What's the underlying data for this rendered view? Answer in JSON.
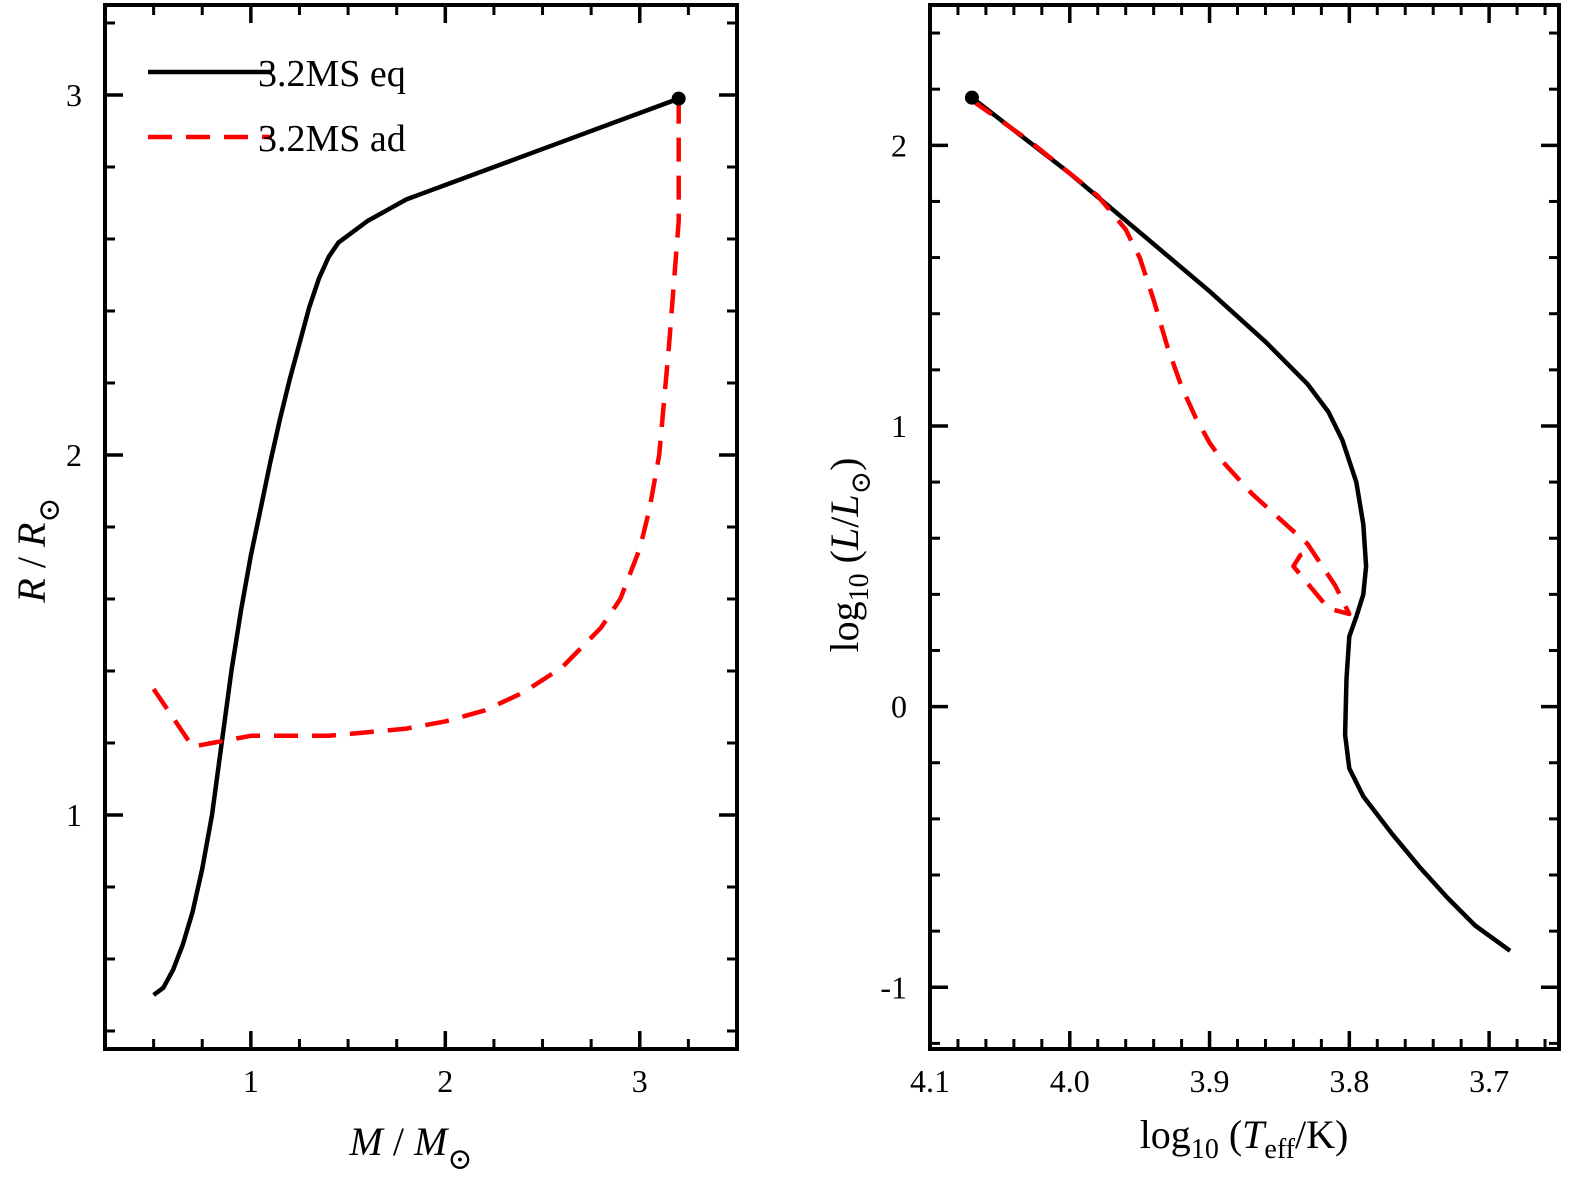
{
  "chart_data": [
    {
      "type": "line",
      "id": "mass-radius",
      "xlabel": {
        "main": "M",
        "sep": " / ",
        "sub_main": "M",
        "subscript": "⊙"
      },
      "ylabel": {
        "main": "R",
        "sep": " / ",
        "sub_main": "R",
        "subscript": "⊙"
      },
      "xlim": [
        0.25,
        3.5
      ],
      "ylim": [
        0.35,
        3.25
      ],
      "xticks": {
        "major": [
          1,
          2,
          3
        ],
        "labels": [
          "1",
          "2",
          "3"
        ],
        "minor_step": 0.25
      },
      "yticks": {
        "major": [
          1,
          2,
          3
        ],
        "labels": [
          "1",
          "2",
          "3"
        ],
        "minor_step": 0.2
      },
      "legend": {
        "position": "top-left",
        "entries": [
          {
            "label": "3.2MS eq",
            "series": "eq"
          },
          {
            "label": "3.2MS ad",
            "series": "ad"
          }
        ]
      },
      "series": [
        {
          "name": "3.2MS eq",
          "key": "eq",
          "color": "#000000",
          "style": "solid",
          "x": [
            0.5,
            0.55,
            0.6,
            0.65,
            0.7,
            0.75,
            0.8,
            0.85,
            0.9,
            0.95,
            1.0,
            1.05,
            1.1,
            1.15,
            1.2,
            1.25,
            1.3,
            1.35,
            1.4,
            1.45,
            1.5,
            1.6,
            1.7,
            1.8,
            1.9,
            2.0,
            2.2,
            2.4,
            2.6,
            2.8,
            3.0,
            3.2
          ],
          "y": [
            0.5,
            0.52,
            0.57,
            0.64,
            0.73,
            0.85,
            1.0,
            1.2,
            1.4,
            1.57,
            1.72,
            1.85,
            1.98,
            2.1,
            2.21,
            2.31,
            2.41,
            2.49,
            2.55,
            2.59,
            2.61,
            2.65,
            2.68,
            2.71,
            2.73,
            2.75,
            2.79,
            2.83,
            2.87,
            2.91,
            2.95,
            2.99
          ]
        },
        {
          "name": "3.2MS ad",
          "key": "ad",
          "color": "#ff0000",
          "style": "dashed",
          "x": [
            0.5,
            0.6,
            0.7,
            0.8,
            0.9,
            1.0,
            1.2,
            1.4,
            1.6,
            1.8,
            2.0,
            2.2,
            2.4,
            2.6,
            2.8,
            2.9,
            3.0,
            3.05,
            3.1,
            3.15,
            3.2,
            3.2
          ],
          "y": [
            1.35,
            1.27,
            1.19,
            1.2,
            1.21,
            1.22,
            1.22,
            1.22,
            1.23,
            1.24,
            1.26,
            1.29,
            1.34,
            1.41,
            1.52,
            1.6,
            1.74,
            1.85,
            2.0,
            2.3,
            2.65,
            2.99
          ]
        }
      ],
      "markers": [
        {
          "x": 3.2,
          "y": 2.99,
          "color": "#000000"
        }
      ]
    },
    {
      "type": "line",
      "id": "hr-diagram",
      "xlabel": {
        "prefix": "log",
        "prefix_sub": "10",
        "open": " (",
        "main": "T",
        "main_sub": "eff",
        "close": "/K)"
      },
      "ylabel": {
        "prefix": "log",
        "prefix_sub": "10",
        "open": " (",
        "main": "L",
        "slash": "/",
        "sub_main": "L",
        "subscript": "⊙",
        "close": ")"
      },
      "xlim": [
        4.1,
        3.65
      ],
      "ylim": [
        -1.22,
        2.5
      ],
      "xticks": {
        "major": [
          4.1,
          4.0,
          3.9,
          3.8,
          3.7
        ],
        "labels": [
          "4.1",
          "4.0",
          "3.9",
          "3.8",
          "3.7"
        ],
        "minor_step": 0.02
      },
      "yticks": {
        "major": [
          -1,
          0,
          1,
          2
        ],
        "labels": [
          "-1",
          "0",
          "1",
          "2"
        ],
        "minor_step": 0.2
      },
      "series": [
        {
          "name": "3.2MS eq",
          "key": "eq",
          "color": "#000000",
          "style": "solid",
          "x": [
            4.07,
            4.0,
            3.95,
            3.9,
            3.86,
            3.83,
            3.815,
            3.805,
            3.795,
            3.79,
            3.788,
            3.79,
            3.795,
            3.8,
            3.802,
            3.803,
            3.8,
            3.79,
            3.77,
            3.75,
            3.73,
            3.71,
            3.685
          ],
          "y": [
            2.17,
            1.9,
            1.69,
            1.48,
            1.3,
            1.15,
            1.05,
            0.95,
            0.8,
            0.65,
            0.5,
            0.4,
            0.32,
            0.25,
            0.1,
            -0.1,
            -0.22,
            -0.32,
            -0.45,
            -0.57,
            -0.68,
            -0.78,
            -0.87
          ]
        },
        {
          "name": "3.2MS ad",
          "key": "ad",
          "color": "#ff0000",
          "style": "dashed",
          "x": [
            4.07,
            4.03,
            4.0,
            3.98,
            3.96,
            3.95,
            3.94,
            3.93,
            3.92,
            3.91,
            3.9,
            3.89,
            3.87,
            3.85,
            3.83,
            3.81,
            3.8,
            3.815,
            3.83,
            3.84,
            3.835,
            3.825
          ],
          "y": [
            2.16,
            2.02,
            1.9,
            1.82,
            1.7,
            1.6,
            1.45,
            1.28,
            1.14,
            1.03,
            0.94,
            0.87,
            0.76,
            0.67,
            0.58,
            0.43,
            0.33,
            0.35,
            0.44,
            0.5,
            0.54,
            0.56
          ]
        }
      ],
      "markers": [
        {
          "x": 4.07,
          "y": 2.17,
          "color": "#000000"
        }
      ]
    }
  ]
}
